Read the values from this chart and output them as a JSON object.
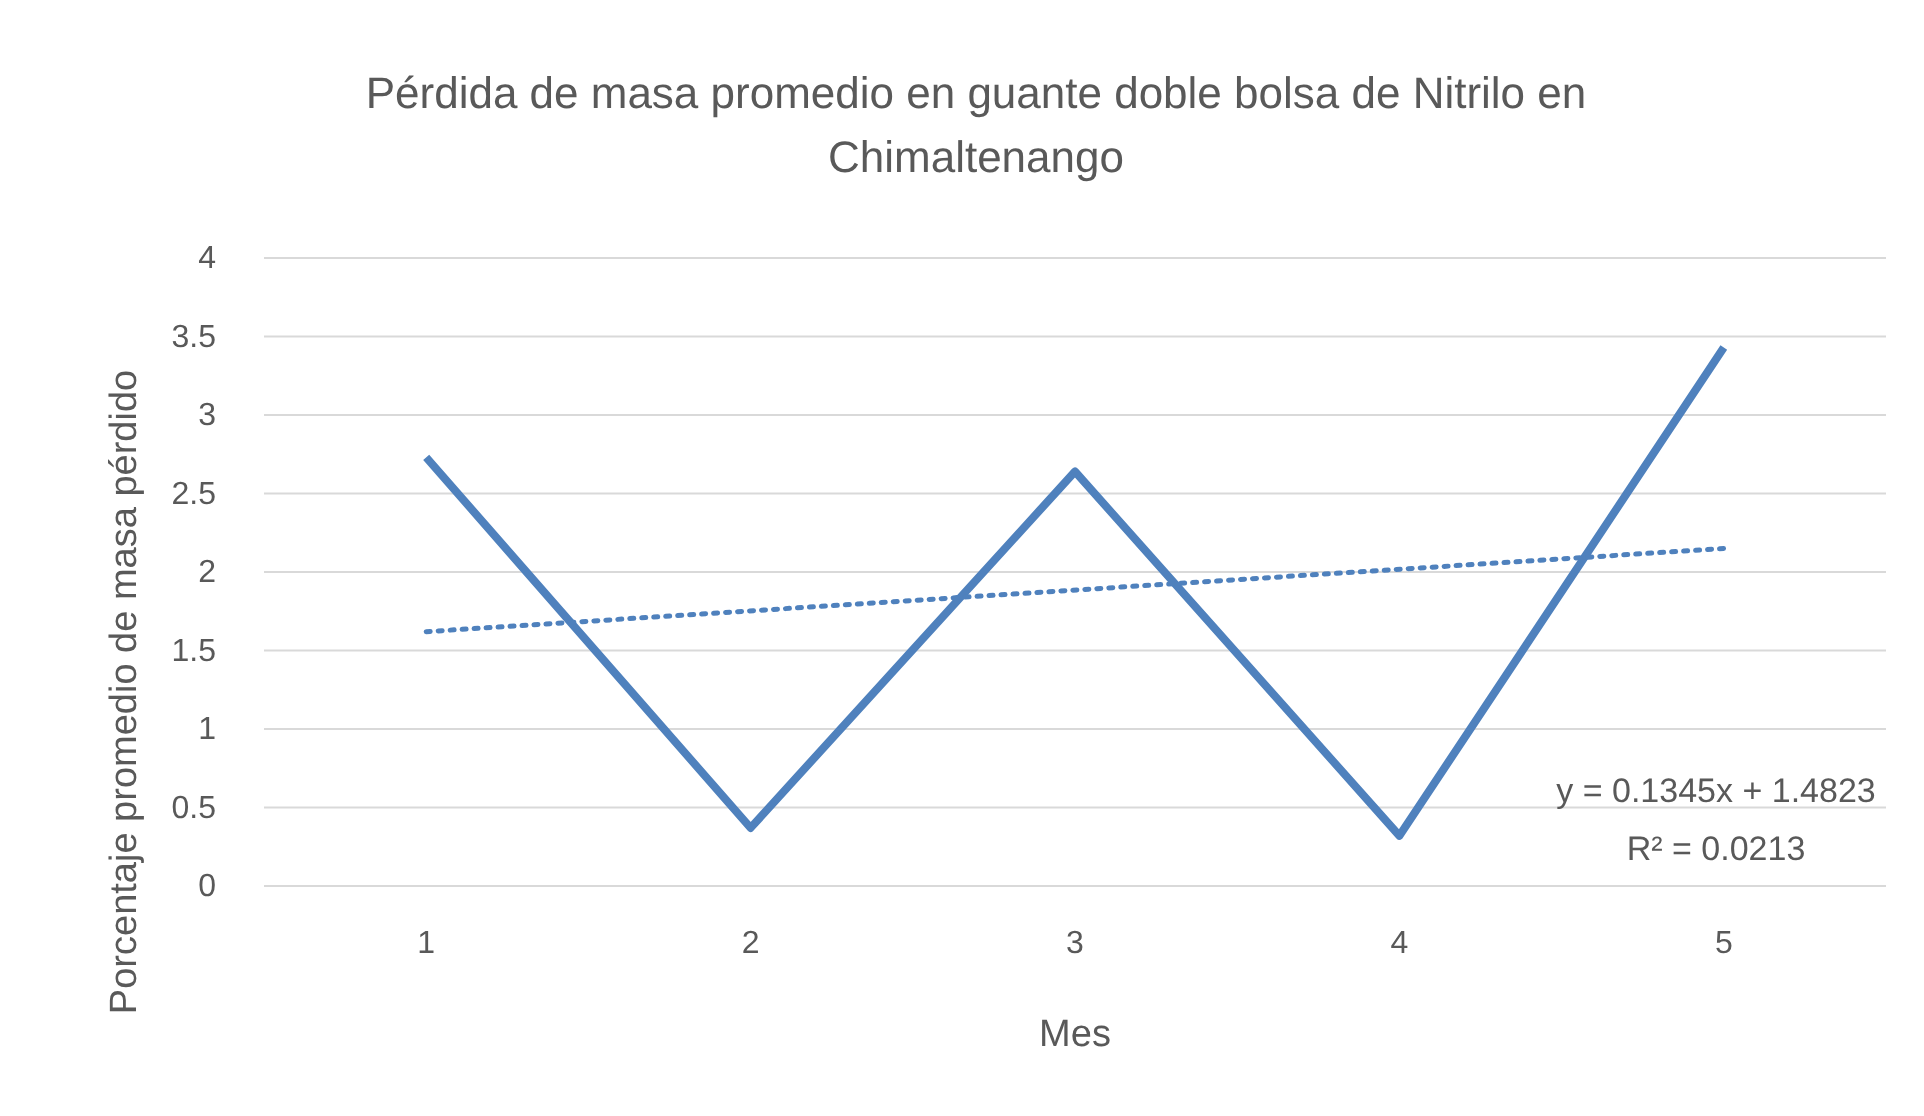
{
  "chart_data": {
    "type": "line",
    "title": "Pérdida de masa promedio en guante doble bolsa de Nitrilo en Chimaltenango",
    "xlabel": "Mes",
    "ylabel": "Porcentaje promedio de masa pérdido",
    "categories": [
      "1",
      "2",
      "3",
      "4",
      "5"
    ],
    "series": [
      {
        "color": "#4f81bd",
        "values": [
          2.73,
          0.37,
          2.64,
          0.32,
          3.43
        ]
      },
      {
        "type": "line",
        "x": [
          "1",
          "5"
        ],
        "color": "#4f81bd",
        "line_style": "dotted",
        "values": [
          1.62,
          2.15
        ]
      }
    ],
    "ylim": [
      0,
      4
    ],
    "yticks": [
      0,
      0.5,
      1,
      1.5,
      2,
      2.5,
      3,
      3.5,
      4
    ],
    "grid": "y",
    "marker": "none",
    "line_style": "solid",
    "annotations": [
      "y = 0.1345x + 1.4823",
      "R² = 0.0213"
    ]
  }
}
